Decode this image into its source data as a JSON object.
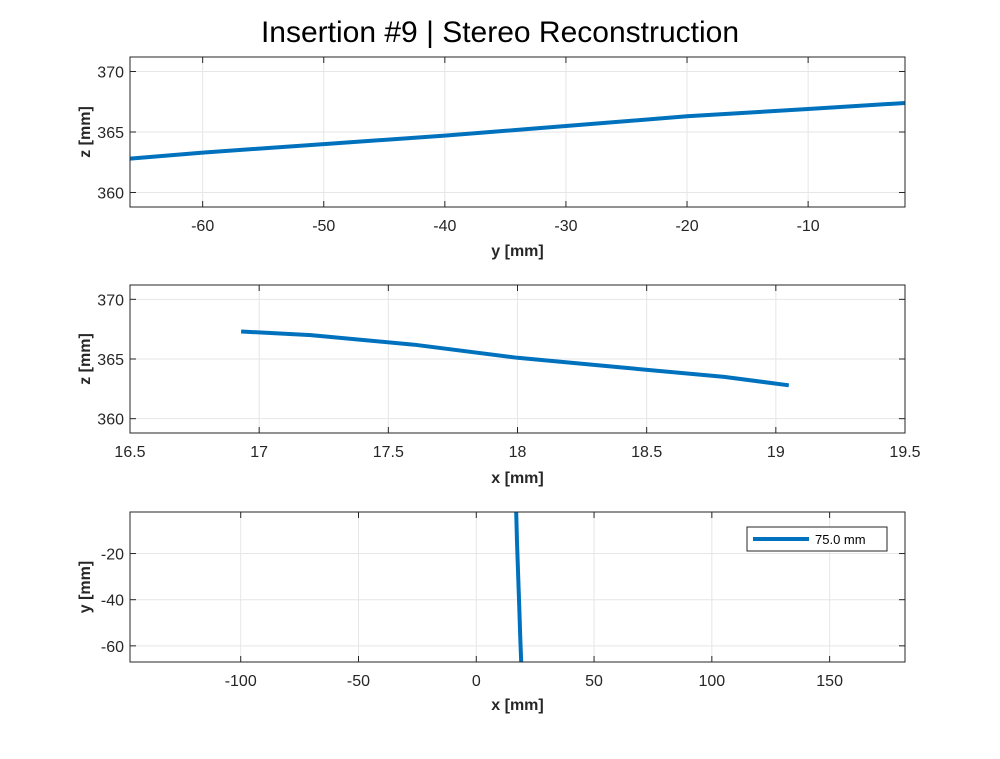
{
  "figure": {
    "title": "Insertion #9 | Stereo Reconstruction"
  },
  "colors": {
    "series": "#0072BD",
    "grid": "#E6E6E6",
    "axis": "#262626",
    "background": "#FFFFFF"
  },
  "chart_data": [
    {
      "type": "line",
      "xlabel": "y [mm]",
      "ylabel": "z [mm]",
      "xlim": [
        -66,
        -2
      ],
      "ylim": [
        358.8,
        371.2
      ],
      "xticks": [
        -60,
        -50,
        -40,
        -30,
        -20,
        -10
      ],
      "xtick_labels": [
        "-60",
        "-50",
        "-40",
        "-30",
        "-20",
        "-10"
      ],
      "yticks": [
        360,
        365,
        370
      ],
      "ytick_labels": [
        "360",
        "365",
        "370"
      ],
      "grid": true,
      "series": [
        {
          "x": [
            -66,
            -60,
            -50,
            -40,
            -30,
            -20,
            -10,
            -2
          ],
          "y": [
            362.8,
            363.3,
            364.0,
            364.7,
            365.5,
            366.3,
            366.9,
            367.4
          ]
        }
      ]
    },
    {
      "type": "line",
      "xlabel": "x [mm]",
      "ylabel": "z [mm]",
      "xlim": [
        16.5,
        19.5
      ],
      "ylim": [
        358.8,
        371.2
      ],
      "xticks": [
        16.5,
        17,
        17.5,
        18,
        18.5,
        19,
        19.5
      ],
      "xtick_labels": [
        "16.5",
        "17",
        "17.5",
        "18",
        "18.5",
        "19",
        "19.5"
      ],
      "yticks": [
        360,
        365,
        370
      ],
      "ytick_labels": [
        "360",
        "365",
        "370"
      ],
      "grid": true,
      "series": [
        {
          "x": [
            16.93,
            17.2,
            17.6,
            18.0,
            18.4,
            18.8,
            19.05
          ],
          "y": [
            367.3,
            367.0,
            366.2,
            365.1,
            364.3,
            363.5,
            362.8
          ]
        }
      ]
    },
    {
      "type": "line",
      "xlabel": "x [mm]",
      "ylabel": "y [mm]",
      "xlim": [
        -147,
        182
      ],
      "ylim": [
        -67,
        -2
      ],
      "xticks": [
        -100,
        -50,
        0,
        50,
        100,
        150
      ],
      "xtick_labels": [
        "-100",
        "-50",
        "0",
        "50",
        "100",
        "150"
      ],
      "yticks": [
        -60,
        -40,
        -20
      ],
      "ytick_labels": [
        "-60",
        "-40",
        "-20"
      ],
      "grid": true,
      "legend": {
        "placement": "top-right",
        "entries": [
          "75.0 mm"
        ]
      },
      "series": [
        {
          "name": "75.0 mm",
          "x": [
            16.93,
            17.3,
            17.8,
            18.3,
            18.7,
            19.05
          ],
          "y": [
            -2,
            -15,
            -30,
            -45,
            -57,
            -67
          ]
        }
      ]
    }
  ]
}
